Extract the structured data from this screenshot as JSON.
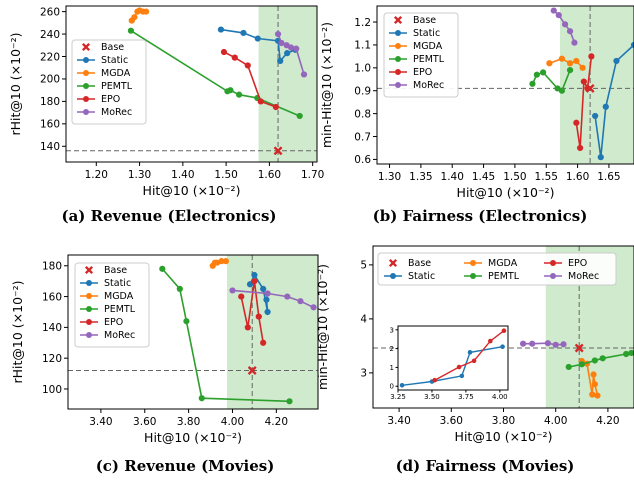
{
  "colors": {
    "static": "#1f77b4",
    "mgda": "#ff7f0e",
    "pemtl": "#2ca02c",
    "epo": "#d62728",
    "morec": "#9467bd",
    "base": "#d62728",
    "region": "#c7e6c3"
  },
  "chart_data": [
    {
      "type": "line",
      "caption": "(a) Revenue (Electronics)",
      "xlabel": "Hit@10 (×10⁻²)",
      "ylabel": "rHit@10 (×10⁻²)",
      "xlim": [
        1.13,
        1.71
      ],
      "ylim": [
        126,
        265
      ],
      "xticks": [
        1.2,
        1.3,
        1.4,
        1.5,
        1.6,
        1.7
      ],
      "xtick_labels": [
        "1.20",
        "1.30",
        "1.40",
        "1.50",
        "1.60",
        "1.70"
      ],
      "yticks": [
        140,
        160,
        180,
        200,
        220,
        240,
        260
      ],
      "ytick_labels": [
        "140",
        "160",
        "180",
        "200",
        "220",
        "240",
        "260"
      ],
      "grid": false,
      "legend": "left",
      "legend_entries": [
        "Base",
        "Static",
        "MGDA",
        "PEMTL",
        "EPO",
        "MoRec"
      ],
      "base": [
        1.62,
        136
      ],
      "region_x_from": 1.575,
      "series": [
        {
          "name": "Static",
          "x": [
            1.488,
            1.54,
            1.573,
            1.62,
            1.625,
            1.641,
            1.66
          ],
          "y": [
            244,
            241,
            236,
            234,
            216,
            223,
            226
          ]
        },
        {
          "name": "MGDA",
          "x": [
            1.282,
            1.288,
            1.295,
            1.3,
            1.308,
            1.315
          ],
          "y": [
            252,
            255,
            260,
            261,
            260,
            260
          ]
        },
        {
          "name": "PEMTL",
          "x": [
            1.28,
            1.503,
            1.51,
            1.53,
            1.572,
            1.67
          ],
          "y": [
            243,
            189,
            190,
            186,
            183,
            167
          ]
        },
        {
          "name": "EPO",
          "x": [
            1.495,
            1.52,
            1.55,
            1.58,
            1.615
          ],
          "y": [
            224,
            219,
            212,
            180,
            175
          ]
        },
        {
          "name": "MoRec",
          "x": [
            1.62,
            1.628,
            1.64,
            1.65,
            1.662,
            1.68
          ],
          "y": [
            240,
            232,
            230,
            228,
            227,
            204
          ]
        }
      ]
    },
    {
      "type": "line",
      "caption": "(b) Fairness (Electronics)",
      "xlabel": "Hit@10 (×10⁻²)",
      "ylabel": "min-Hit@10 (×10⁻²)",
      "xlim": [
        1.28,
        1.69
      ],
      "ylim": [
        0.58,
        1.27
      ],
      "xticks": [
        1.3,
        1.35,
        1.4,
        1.45,
        1.5,
        1.55,
        1.6,
        1.65
      ],
      "xtick_labels": [
        "1.30",
        "1.35",
        "1.40",
        "1.45",
        "1.50",
        "1.55",
        "1.60",
        "1.65"
      ],
      "yticks": [
        0.6,
        0.7,
        0.8,
        0.9,
        1.0,
        1.1,
        1.2
      ],
      "ytick_labels": [
        "0.6",
        "0.7",
        "0.8",
        "0.9",
        "1.0",
        "1.1",
        "1.2"
      ],
      "grid": false,
      "legend": "top-left",
      "legend_entries": [
        "Base",
        "Static",
        "MGDA",
        "PEMTL",
        "EPO",
        "MoRec"
      ],
      "base": [
        1.62,
        0.91
      ],
      "region_x_from": 1.572,
      "series": [
        {
          "name": "Static",
          "x": [
            1.628,
            1.637,
            1.645,
            1.662,
            1.69
          ],
          "y": [
            0.79,
            0.61,
            0.83,
            1.03,
            1.1
          ]
        },
        {
          "name": "MGDA",
          "x": [
            1.555,
            1.575,
            1.588,
            1.598,
            1.608
          ],
          "y": [
            1.02,
            1.04,
            1.02,
            1.03,
            1.0
          ]
        },
        {
          "name": "PEMTL",
          "x": [
            1.528,
            1.535,
            1.545,
            1.568,
            1.575,
            1.588
          ],
          "y": [
            0.93,
            0.97,
            0.98,
            0.91,
            0.9,
            0.99
          ]
        },
        {
          "name": "EPO",
          "x": [
            1.598,
            1.604,
            1.61,
            1.616,
            1.622
          ],
          "y": [
            0.76,
            0.65,
            0.94,
            0.91,
            1.05
          ]
        },
        {
          "name": "MoRec",
          "x": [
            1.562,
            1.57,
            1.58,
            1.588,
            1.595
          ],
          "y": [
            1.25,
            1.23,
            1.19,
            1.16,
            1.11
          ]
        }
      ]
    },
    {
      "type": "line",
      "caption": "(c) Revenue (Movies)",
      "xlabel": "Hit@10 (×10⁻²)",
      "ylabel": "rHit@10 (×10⁻²)",
      "xlim": [
        3.25,
        4.39
      ],
      "ylim": [
        87,
        187
      ],
      "xticks": [
        3.4,
        3.6,
        3.8,
        4.0,
        4.2
      ],
      "xtick_labels": [
        "3.40",
        "3.60",
        "3.80",
        "4.00",
        "4.20"
      ],
      "yticks": [
        100,
        120,
        140,
        160,
        180
      ],
      "ytick_labels": [
        "100",
        "120",
        "140",
        "160",
        "180"
      ],
      "grid": false,
      "legend": "top-left",
      "legend_entries": [
        "Base",
        "Static",
        "MGDA",
        "PEMTL",
        "EPO",
        "MoRec"
      ],
      "base": [
        4.09,
        112
      ],
      "region_x_from": 3.975,
      "series": [
        {
          "name": "Static",
          "x": [
            4.08,
            4.1,
            4.14,
            4.16,
            4.155
          ],
          "y": [
            168,
            174,
            165,
            150,
            158
          ]
        },
        {
          "name": "MGDA",
          "x": [
            3.91,
            3.92,
            3.93,
            3.95,
            3.97
          ],
          "y": [
            180,
            182,
            182,
            183,
            183
          ]
        },
        {
          "name": "PEMTL",
          "x": [
            3.68,
            3.76,
            3.79,
            3.86,
            4.26
          ],
          "y": [
            178,
            165,
            144,
            94,
            92
          ]
        },
        {
          "name": "EPO",
          "x": [
            4.04,
            4.07,
            4.1,
            4.12,
            4.14
          ],
          "y": [
            160,
            140,
            170,
            147,
            130
          ]
        },
        {
          "name": "MoRec",
          "x": [
            4.0,
            4.16,
            4.25,
            4.31,
            4.37
          ],
          "y": [
            164,
            162,
            160,
            157,
            153
          ]
        }
      ]
    },
    {
      "type": "line",
      "caption": "(d) Fairness (Movies)",
      "xlabel": "Hit@10 (×10⁻²)",
      "ylabel": "min-Hit@10 (×10⁻²)",
      "xlim": [
        3.3,
        4.3
      ],
      "ylim": [
        2.35,
        5.35
      ],
      "xticks": [
        3.4,
        3.6,
        3.8,
        4.0,
        4.2
      ],
      "xtick_labels": [
        "3.40",
        "3.60",
        "3.80",
        "4.00",
        "4.20"
      ],
      "yticks": [
        3,
        4,
        5
      ],
      "ytick_labels": [
        "3",
        "4",
        "5"
      ],
      "grid": false,
      "legend": "top",
      "legend_entries": [
        "Base",
        "Static",
        "MGDA",
        "PEMTL",
        "EPO",
        "MoRec"
      ],
      "base": [
        4.09,
        3.46
      ],
      "region_x_from": 3.962,
      "series": [
        {
          "name": "Static",
          "x": [],
          "y": []
        },
        {
          "name": "MGDA",
          "x": [
            4.1,
            4.12,
            4.14,
            4.145,
            4.15,
            4.16
          ],
          "y": [
            3.22,
            3.17,
            2.6,
            2.97,
            2.79,
            2.58
          ]
        },
        {
          "name": "PEMTL",
          "x": [
            4.05,
            4.1,
            4.15,
            4.18,
            4.27,
            4.29
          ],
          "y": [
            3.11,
            3.16,
            3.23,
            3.27,
            3.35,
            3.37
          ]
        },
        {
          "name": "EPO",
          "x": [],
          "y": []
        },
        {
          "name": "MoRec",
          "x": [
            3.875,
            3.91,
            3.97,
            4.0,
            4.03
          ],
          "y": [
            3.54,
            3.54,
            3.55,
            3.52,
            3.53
          ]
        }
      ],
      "inset": {
        "xlim": [
          3.25,
          4.06
        ],
        "ylim": [
          -0.2,
          3.2
        ],
        "xticks": [
          3.25,
          3.5,
          3.75,
          4.0
        ],
        "xtick_labels": [
          "3.25",
          "3.50",
          "3.75",
          "4.00"
        ],
        "yticks": [
          0,
          1,
          2,
          3
        ],
        "ytick_labels": [
          "0",
          "1",
          "2",
          "3"
        ],
        "series": [
          {
            "name": "Static",
            "x": [
              3.28,
              3.5,
              3.72,
              3.78,
              4.02
            ],
            "y": [
              0.05,
              0.25,
              0.55,
              1.8,
              2.1
            ]
          },
          {
            "name": "EPO",
            "x": [
              3.52,
              3.7,
              3.81,
              3.93,
              4.03
            ],
            "y": [
              0.32,
              1.02,
              1.35,
              2.4,
              2.95
            ]
          }
        ]
      }
    }
  ]
}
